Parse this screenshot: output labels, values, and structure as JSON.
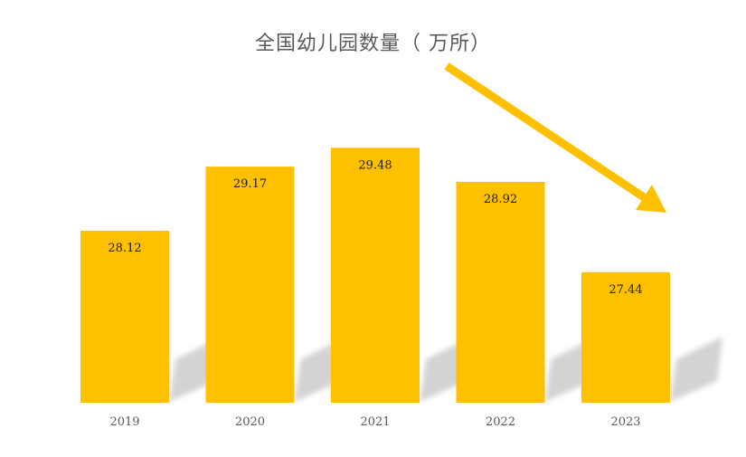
{
  "chart_data": {
    "type": "bar",
    "title": "全国幼儿园数量（ 万所）",
    "categories": [
      "2019",
      "2020",
      "2021",
      "2022",
      "2023"
    ],
    "values": [
      28.12,
      29.17,
      29.48,
      28.92,
      27.44
    ],
    "ylim": [
      25.3,
      29.99
    ],
    "xlabel": "",
    "ylabel": "",
    "grid": false,
    "legend": "none",
    "data_labels": true,
    "bar_color": "#FFC000",
    "label_color": "#1a1a1a",
    "tick_color": "#595959",
    "trend_arrow": {
      "direction": "down",
      "color": "#FFC000"
    }
  }
}
